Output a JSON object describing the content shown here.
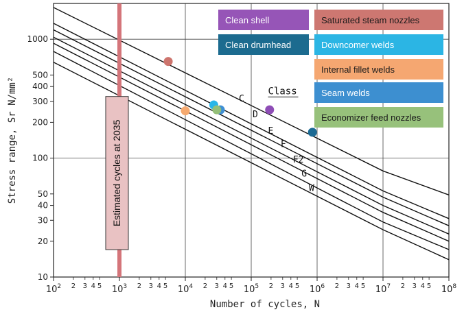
{
  "chart_data": {
    "type": "line",
    "xlabel": "Number of cycles, N",
    "ylabel": "Stress range, Sr N/mm²",
    "xscale": "log",
    "yscale": "log",
    "xlim": [
      100,
      100000000
    ],
    "ylim": [
      10,
      2000
    ],
    "grid": true,
    "x_ticks": {
      "major": [
        {
          "value": 100,
          "base": "10",
          "exp": "2"
        },
        {
          "value": 1000,
          "base": "10",
          "exp": "3"
        },
        {
          "value": 10000,
          "base": "10",
          "exp": "4"
        },
        {
          "value": 100000,
          "base": "10",
          "exp": "5"
        },
        {
          "value": 1000000,
          "base": "10",
          "exp": "6"
        },
        {
          "value": 10000000,
          "base": "10",
          "exp": "7"
        },
        {
          "value": 100000000,
          "base": "10",
          "exp": "8"
        }
      ],
      "minor_labels": [
        "2",
        "3",
        "4",
        "5"
      ]
    },
    "y_ticks": [
      {
        "value": 10,
        "label": "10"
      },
      {
        "value": 20,
        "label": "20"
      },
      {
        "value": 30,
        "label": "30"
      },
      {
        "value": 40,
        "label": "40"
      },
      {
        "value": 50,
        "label": "50"
      },
      {
        "value": 100,
        "label": "100"
      },
      {
        "value": 200,
        "label": "200"
      },
      {
        "value": 300,
        "label": "300"
      },
      {
        "value": 400,
        "label": "400"
      },
      {
        "value": 500,
        "label": "500"
      },
      {
        "value": 1000,
        "label": "1000"
      }
    ],
    "class_heading": "Class",
    "series": [
      {
        "name": "C",
        "label_at": [
          65000,
          300
        ],
        "x": [
          100,
          10000000,
          100000000
        ],
        "y": [
          1850,
          78,
          49
        ]
      },
      {
        "name": "D",
        "label_at": [
          105000,
          220
        ],
        "x": [
          100,
          10000000,
          100000000
        ],
        "y": [
          1360,
          53,
          31
        ]
      },
      {
        "name": "E",
        "label_at": [
          180000,
          160
        ],
        "x": [
          100,
          10000000,
          100000000
        ],
        "y": [
          1200,
          47,
          27
        ]
      },
      {
        "name": "F",
        "label_at": [
          280000,
          124
        ],
        "x": [
          100,
          10000000,
          100000000
        ],
        "y": [
          1040,
          40,
          23
        ]
      },
      {
        "name": "F2",
        "label_at": [
          430000,
          92
        ],
        "x": [
          100,
          10000000,
          100000000
        ],
        "y": [
          925,
          35,
          20
        ]
      },
      {
        "name": "G",
        "label_at": [
          580000,
          70
        ],
        "x": [
          100,
          10000000,
          100000000
        ],
        "y": [
          790,
          29,
          17
        ]
      },
      {
        "name": "W",
        "label_at": [
          750000,
          53
        ],
        "x": [
          100,
          10000000,
          100000000
        ],
        "y": [
          640,
          25,
          14
        ]
      }
    ],
    "vertical_marker": {
      "x": 1000,
      "color": "#d4757a",
      "label": "Estimated cycles at 2035",
      "label_fill": "#e9c2c3",
      "label_y_range": [
        17,
        330
      ]
    },
    "points": [
      {
        "name": "Saturated steam nozzles",
        "x": 5500,
        "y": 650,
        "color": "#cd746d"
      },
      {
        "name": "Internal fillet welds",
        "x": 10000,
        "y": 250,
        "color": "#f5a96f"
      },
      {
        "name": "Downcomer welds",
        "x": 27000,
        "y": 280,
        "color": "#29b6e8"
      },
      {
        "name": "Seam welds",
        "x": 34000,
        "y": 255,
        "color": "#3f8fd4"
      },
      {
        "name": "Economizer feed nozzles",
        "x": 30000,
        "y": 255,
        "color": "#94bf78"
      },
      {
        "name": "Clean shell",
        "x": 190000,
        "y": 255,
        "color": "#8e4db6"
      },
      {
        "name": "Clean drumhead",
        "x": 850000,
        "y": 165,
        "color": "#1b6a94"
      }
    ],
    "legend": [
      {
        "label": "Clean shell",
        "color": "#9655b7",
        "text_dark": false
      },
      {
        "label": "Clean drumhead",
        "color": "#1c6b8f",
        "text_dark": false
      },
      {
        "label": "Saturated steam nozzles",
        "color": "#cd7771",
        "text_dark": true
      },
      {
        "label": "Downcomer welds",
        "color": "#2bb5e4",
        "text_dark": false
      },
      {
        "label": "Internal fillet welds",
        "color": "#f5a771",
        "text_dark": true
      },
      {
        "label": "Seam welds",
        "color": "#3d8fd0",
        "text_dark": false
      },
      {
        "label": "Economizer feed nozzles",
        "color": "#97c17b",
        "text_dark": true
      }
    ]
  }
}
